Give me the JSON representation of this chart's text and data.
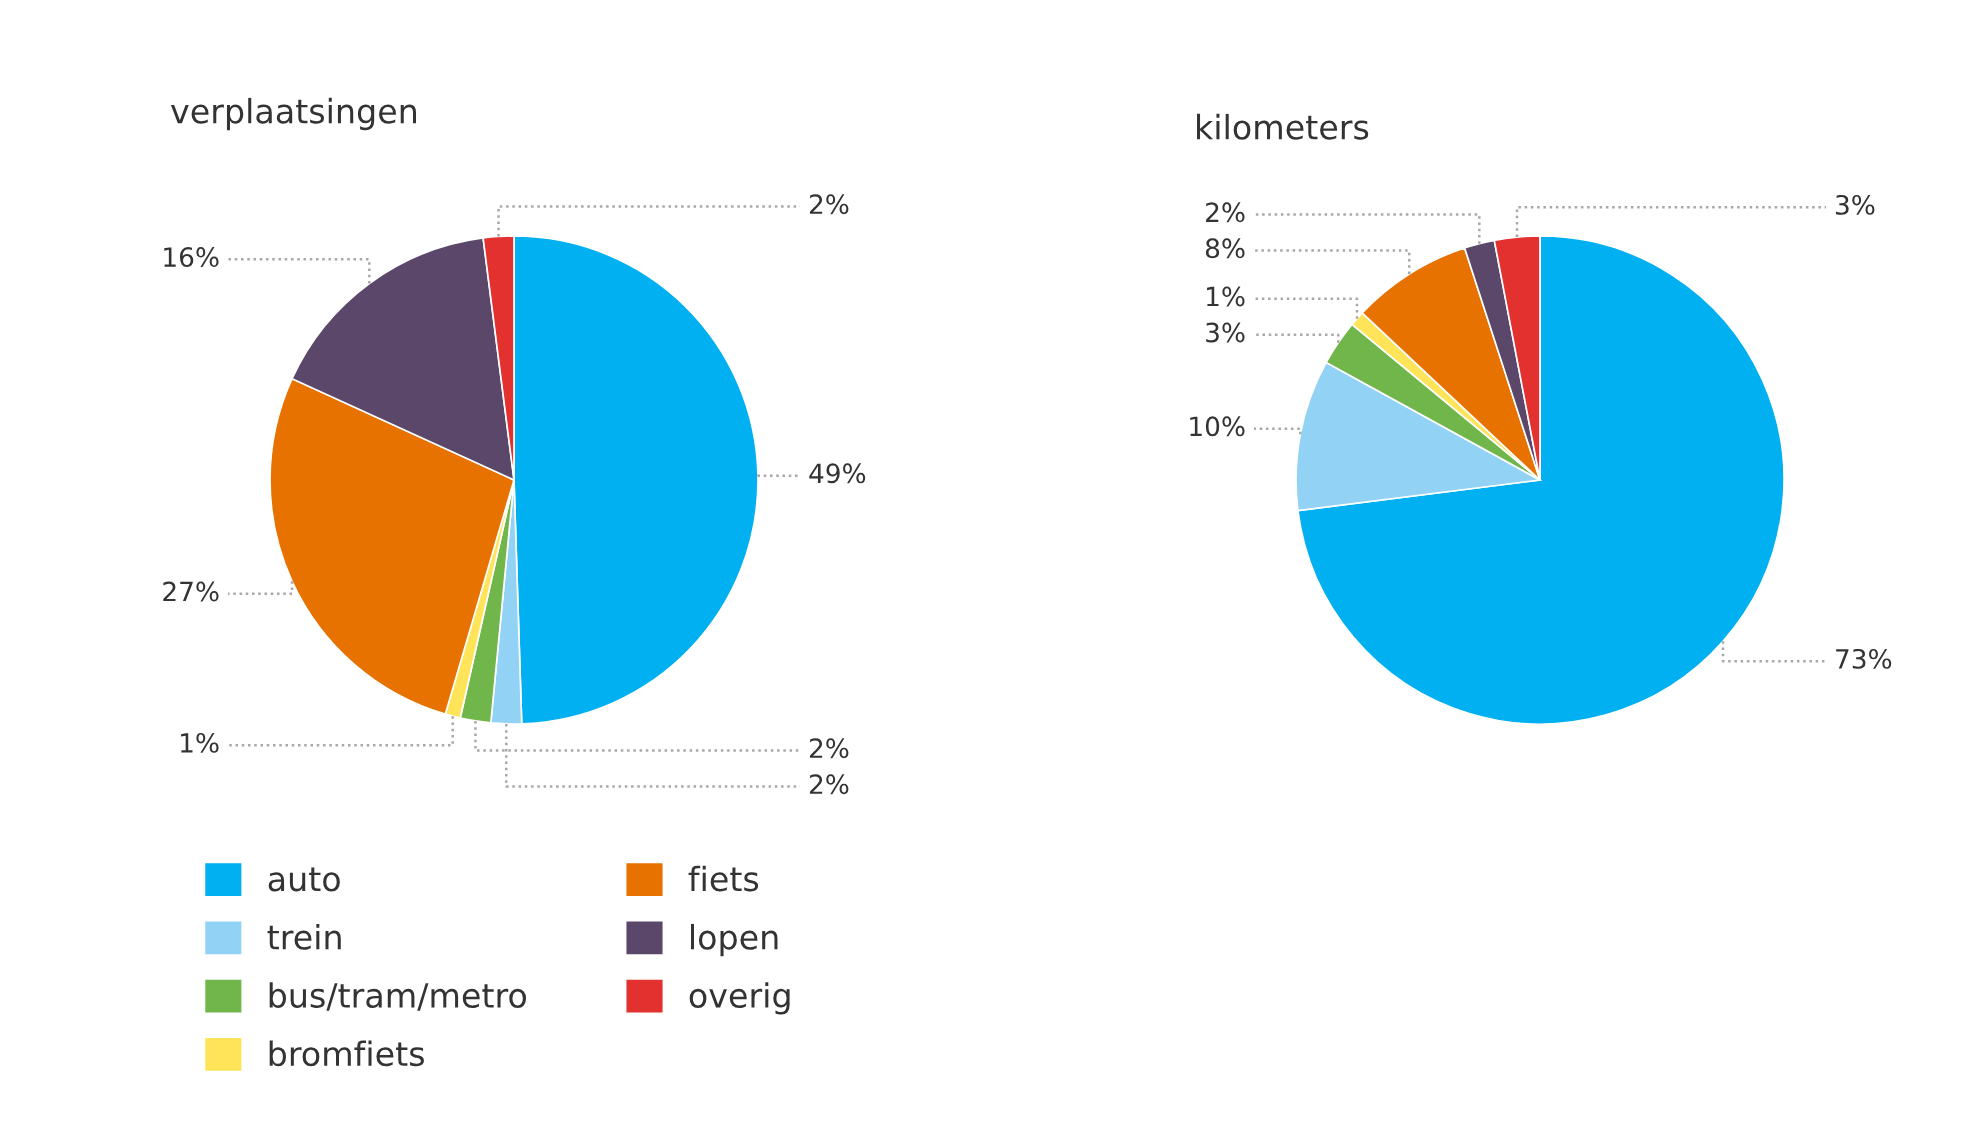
{
  "chart_data": [
    {
      "type": "pie",
      "title": "verplaatsingen",
      "categories": [
        "auto",
        "trein",
        "bus/tram/metro",
        "bromfiets",
        "fiets",
        "lopen",
        "overig"
      ],
      "values": [
        49,
        2,
        2,
        1,
        27,
        16,
        2
      ],
      "colors": [
        "#01b0f0",
        "#92d3f5",
        "#70b64a",
        "#ffe45a",
        "#e77200",
        "#5b4769",
        "#e2312f"
      ],
      "value_labels": [
        "49%",
        "2%",
        "2%",
        "1%",
        "27%",
        "16%",
        "2%"
      ],
      "legend": "bottom"
    },
    {
      "type": "pie",
      "title": "kilometers",
      "values": [
        73,
        10,
        3,
        1,
        8,
        2,
        3
      ],
      "colors": [
        "#01b0f0",
        "#92d3f5",
        "#70b64a",
        "#ffe45a",
        "#e77200",
        "#5b4769",
        "#e2312f"
      ],
      "value_labels": [
        "73%",
        "10%",
        "3%",
        "1%",
        "8%",
        "2%",
        "3%"
      ]
    }
  ]
}
